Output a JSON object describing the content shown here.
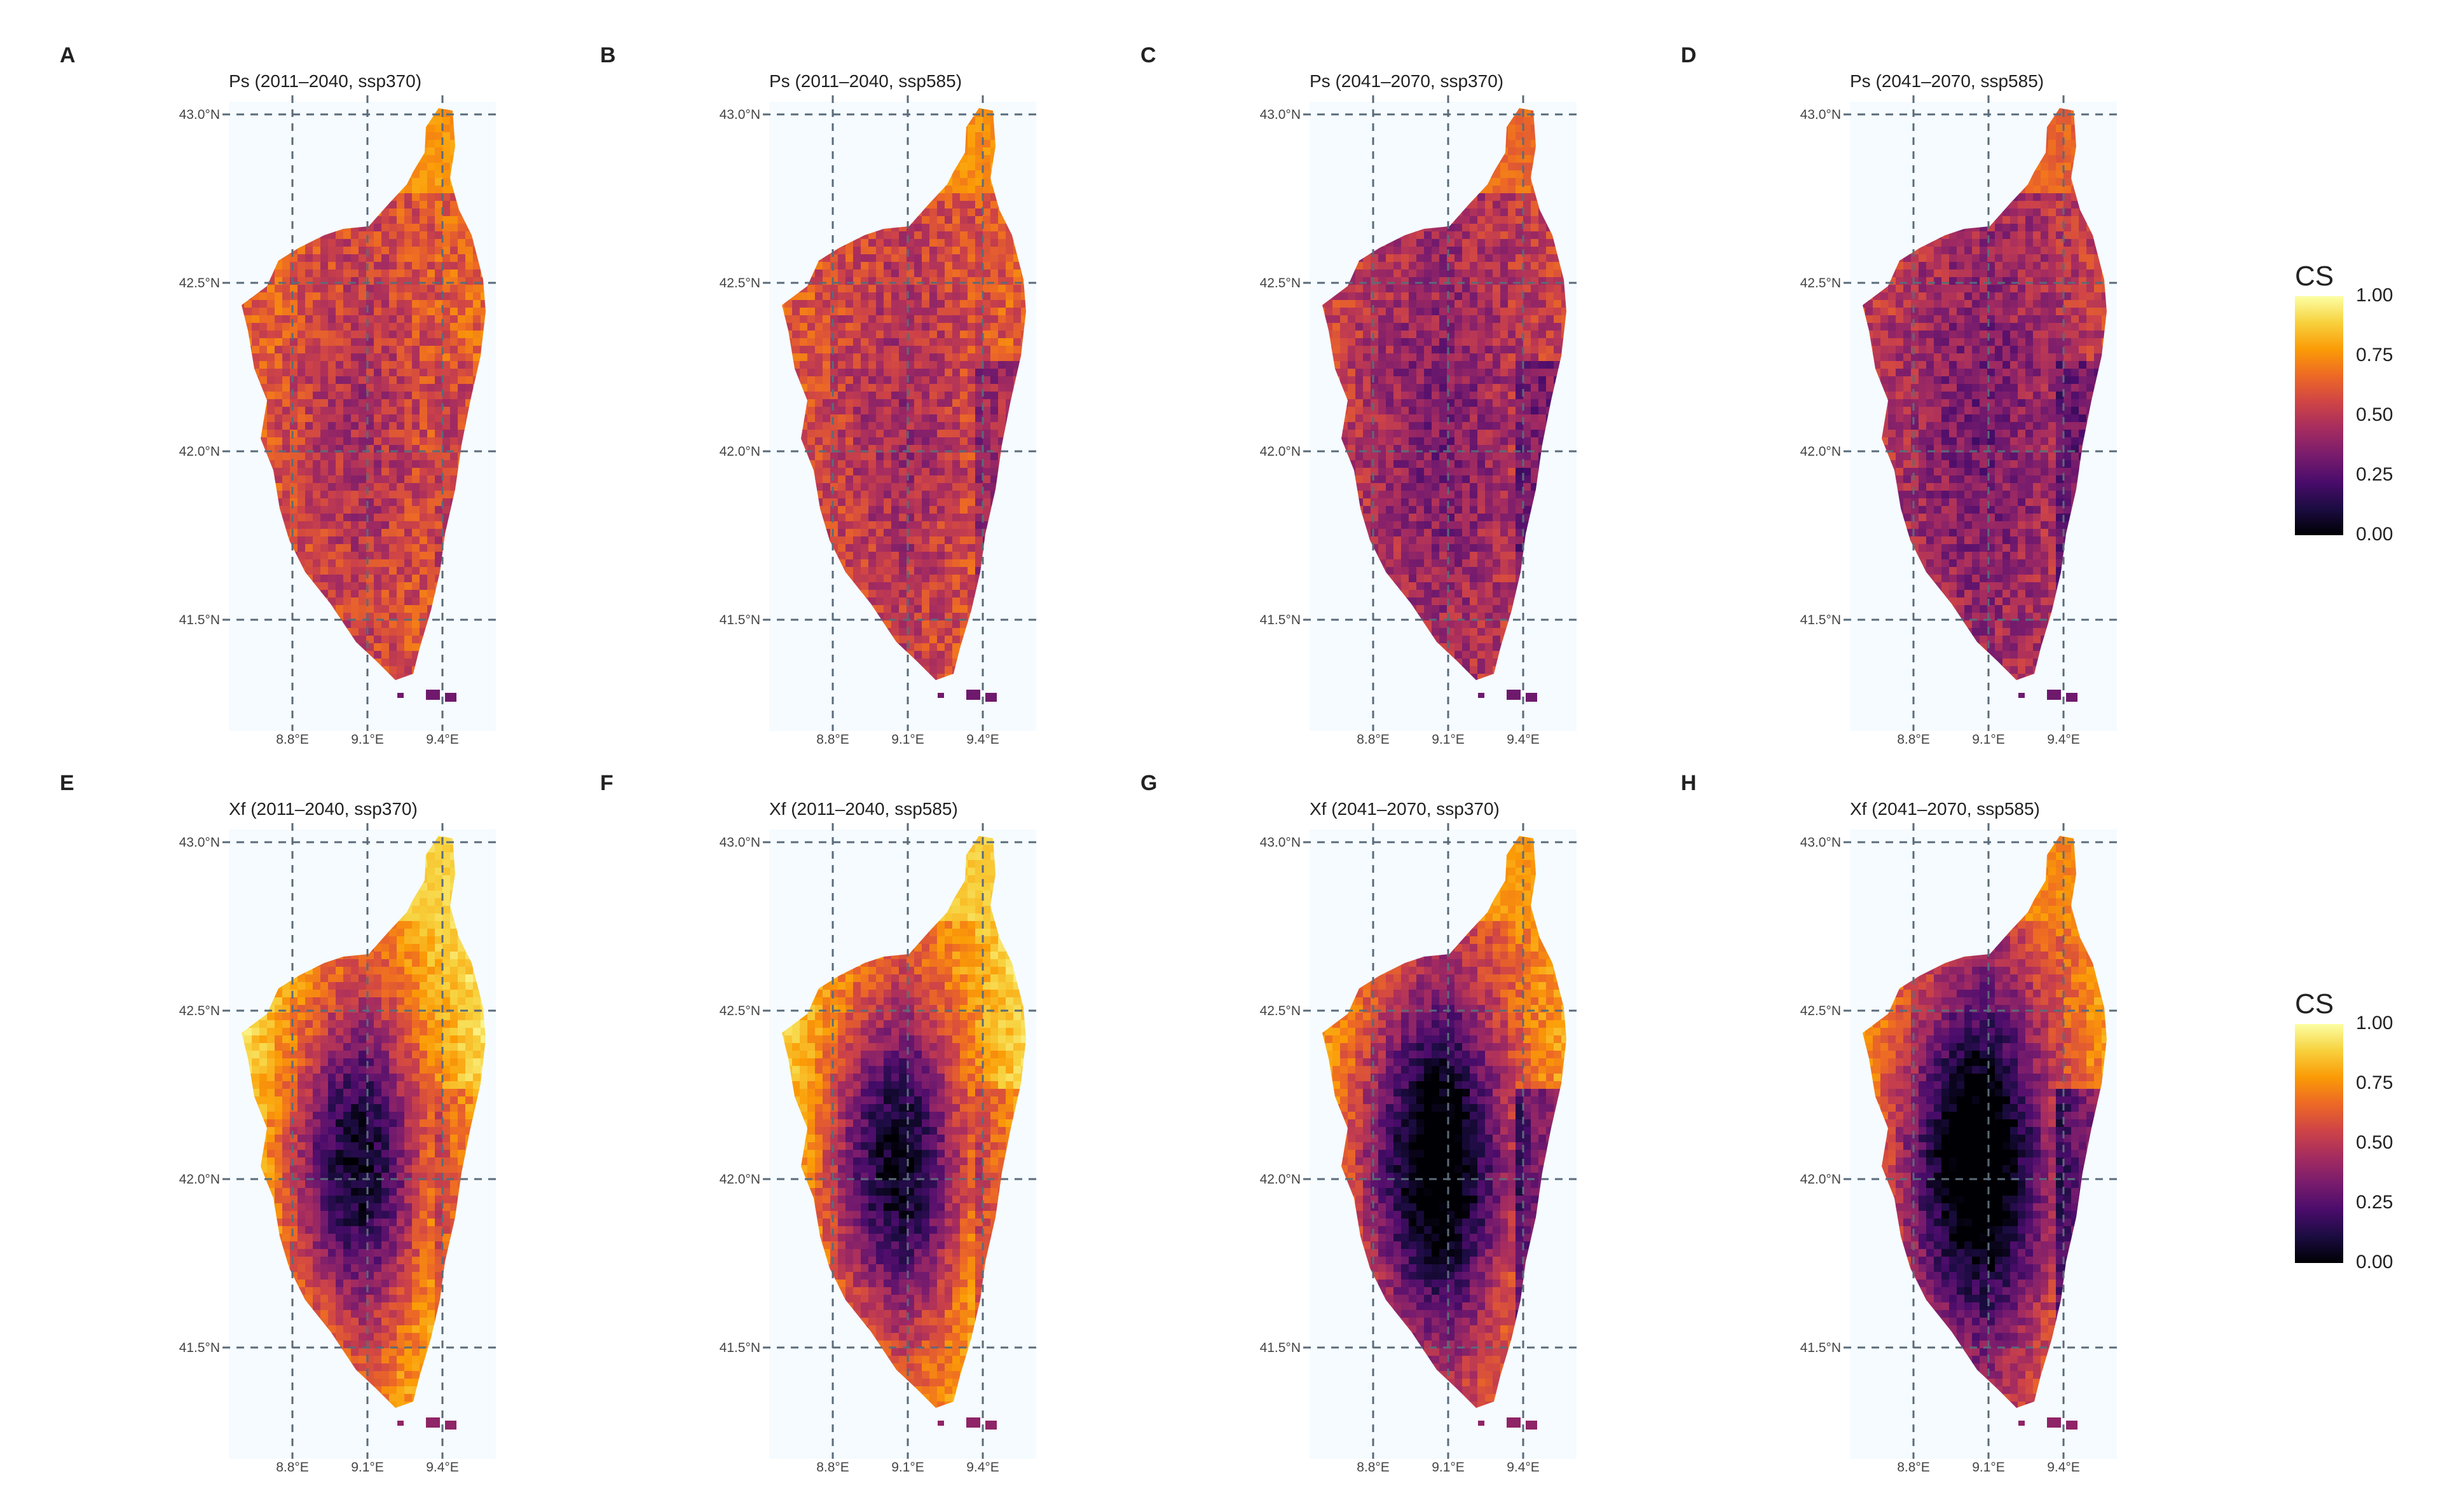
{
  "figure": {
    "panels": [
      {
        "letter": "A",
        "title": "Ps (2011–2040, ssp370)",
        "mean_suitability": 0.52
      },
      {
        "letter": "B",
        "title": "Ps (2011–2040, ssp585)",
        "mean_suitability": 0.5
      },
      {
        "letter": "C",
        "title": "Ps (2041–2070, ssp370)",
        "mean_suitability": 0.42
      },
      {
        "letter": "D",
        "title": "Ps (2041–2070, ssp585)",
        "mean_suitability": 0.4
      },
      {
        "letter": "E",
        "title": "Xf (2011–2040, ssp370)",
        "mean_suitability": 0.68
      },
      {
        "letter": "F",
        "title": "Xf (2011–2040, ssp585)",
        "mean_suitability": 0.66
      },
      {
        "letter": "G",
        "title": "Xf (2041–2070, ssp370)",
        "mean_suitability": 0.52
      },
      {
        "letter": "H",
        "title": "Xf (2041–2070, ssp585)",
        "mean_suitability": 0.48
      }
    ],
    "lat_ticks": [
      "43.0°N",
      "42.5°N",
      "42.0°N",
      "41.5°N"
    ],
    "lon_ticks": [
      "8.8°E",
      "9.1°E",
      "9.4°E"
    ],
    "legends": [
      {
        "title": "CS",
        "labels": [
          "1.00",
          "0.75",
          "0.50",
          "0.25",
          "0.00"
        ]
      },
      {
        "title": "CS",
        "labels": [
          "1.00",
          "0.75",
          "0.50",
          "0.25",
          "0.00"
        ]
      }
    ],
    "colors": {
      "colormap": "inferno",
      "panel_background": "#f5fbff",
      "graticule": "#5a6b7a"
    }
  }
}
